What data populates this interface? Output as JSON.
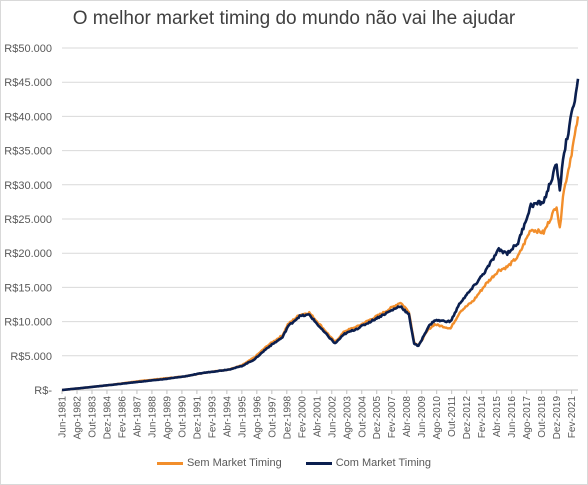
{
  "chart_data": {
    "type": "line",
    "title": "O melhor market timing do mundo não vai lhe ajudar",
    "xlabel": "",
    "ylabel": "",
    "ylim": [
      0,
      50000
    ],
    "y_ticks": [
      0,
      5000,
      10000,
      15000,
      20000,
      25000,
      30000,
      35000,
      40000,
      45000,
      50000
    ],
    "y_tick_labels": [
      "R$-",
      "R$5.000",
      "R$10.000",
      "R$15.000",
      "R$20.000",
      "R$25.000",
      "R$30.000",
      "R$35.000",
      "R$40.000",
      "R$45.000",
      "R$50.000"
    ],
    "x_range": [
      "1981-06",
      "2021-08"
    ],
    "x_tick_labels": [
      "Jun-1981",
      "Ago-1982",
      "Out-1983",
      "Dez-1984",
      "Fev-1986",
      "Abr-1987",
      "Jun-1988",
      "Ago-1989",
      "Out-1990",
      "Dez-1991",
      "Fev-1993",
      "Abr-1994",
      "Jun-1995",
      "Ago-1996",
      "Out-1997",
      "Dez-1998",
      "Fev-2000",
      "Abr-2001",
      "Jun-2002",
      "Ago-2003",
      "Out-2004",
      "Dez-2005",
      "Fev-2007",
      "Abr-2008",
      "Jun-2009",
      "Ago-2010",
      "Out-2011",
      "Dez-2012",
      "Fev-2014",
      "Abr-2015",
      "Jun-2016",
      "Ago-2017",
      "Out-2018",
      "Dez-2019",
      "Fev-2021"
    ],
    "grid": true,
    "legend_position": "bottom",
    "series": [
      {
        "name": "Sem Market Timing",
        "color": "#f28e2b",
        "points": [
          [
            "1981-06",
            0
          ],
          [
            "1983-01",
            300
          ],
          [
            "1985-01",
            700
          ],
          [
            "1987-06",
            1300
          ],
          [
            "1989-06",
            1700
          ],
          [
            "1991-01",
            2000
          ],
          [
            "1992-06",
            2500
          ],
          [
            "1994-06",
            3000
          ],
          [
            "1995-06",
            3600
          ],
          [
            "1996-06",
            4800
          ],
          [
            "1997-06",
            6500
          ],
          [
            "1998-08",
            8000
          ],
          [
            "1999-01",
            9600
          ],
          [
            "1999-12",
            11000
          ],
          [
            "2000-09",
            11300
          ],
          [
            "2001-09",
            9200
          ],
          [
            "2002-09",
            7000
          ],
          [
            "2003-06",
            8600
          ],
          [
            "2004-06",
            9300
          ],
          [
            "2005-06",
            10300
          ],
          [
            "2006-06",
            11300
          ],
          [
            "2007-10",
            12800
          ],
          [
            "2008-06",
            11500
          ],
          [
            "2008-11",
            7000
          ],
          [
            "2009-03",
            6500
          ],
          [
            "2009-12",
            8800
          ],
          [
            "2010-06",
            9600
          ],
          [
            "2011-09",
            9000
          ],
          [
            "2012-06",
            11500
          ],
          [
            "2013-06",
            13000
          ],
          [
            "2014-06",
            15500
          ],
          [
            "2015-06",
            17500
          ],
          [
            "2016-02",
            18000
          ],
          [
            "2016-12",
            19500
          ],
          [
            "2017-12",
            23500
          ],
          [
            "2018-12",
            23000
          ],
          [
            "2019-12",
            27000
          ],
          [
            "2020-03",
            23500
          ],
          [
            "2020-06",
            28500
          ],
          [
            "2020-12",
            33000
          ],
          [
            "2021-06",
            38000
          ],
          [
            "2021-08",
            40000
          ]
        ]
      },
      {
        "name": "Com Market Timing",
        "color": "#0b1f4f",
        "points": [
          [
            "1981-06",
            0
          ],
          [
            "1983-01",
            300
          ],
          [
            "1985-01",
            700
          ],
          [
            "1987-06",
            1200
          ],
          [
            "1989-06",
            1600
          ],
          [
            "1991-01",
            2000
          ],
          [
            "1992-06",
            2500
          ],
          [
            "1994-06",
            3000
          ],
          [
            "1995-06",
            3500
          ],
          [
            "1996-06",
            4500
          ],
          [
            "1997-06",
            6200
          ],
          [
            "1998-08",
            7700
          ],
          [
            "1999-01",
            9300
          ],
          [
            "1999-12",
            10800
          ],
          [
            "2000-09",
            11000
          ],
          [
            "2001-09",
            8800
          ],
          [
            "2002-09",
            6800
          ],
          [
            "2003-06",
            8200
          ],
          [
            "2004-06",
            9000
          ],
          [
            "2005-06",
            10000
          ],
          [
            "2006-06",
            11000
          ],
          [
            "2007-10",
            12300
          ],
          [
            "2008-06",
            11000
          ],
          [
            "2008-11",
            6800
          ],
          [
            "2009-03",
            6400
          ],
          [
            "2009-12",
            9200
          ],
          [
            "2010-06",
            10200
          ],
          [
            "2011-09",
            10000
          ],
          [
            "2012-06",
            12800
          ],
          [
            "2013-06",
            15000
          ],
          [
            "2014-06",
            17500
          ],
          [
            "2015-06",
            20500
          ],
          [
            "2016-02",
            20000
          ],
          [
            "2016-12",
            21500
          ],
          [
            "2017-12",
            27000
          ],
          [
            "2018-12",
            27500
          ],
          [
            "2019-12",
            33000
          ],
          [
            "2020-03",
            29000
          ],
          [
            "2020-06",
            34000
          ],
          [
            "2020-12",
            38500
          ],
          [
            "2021-06",
            43500
          ],
          [
            "2021-08",
            45500
          ]
        ]
      }
    ]
  }
}
